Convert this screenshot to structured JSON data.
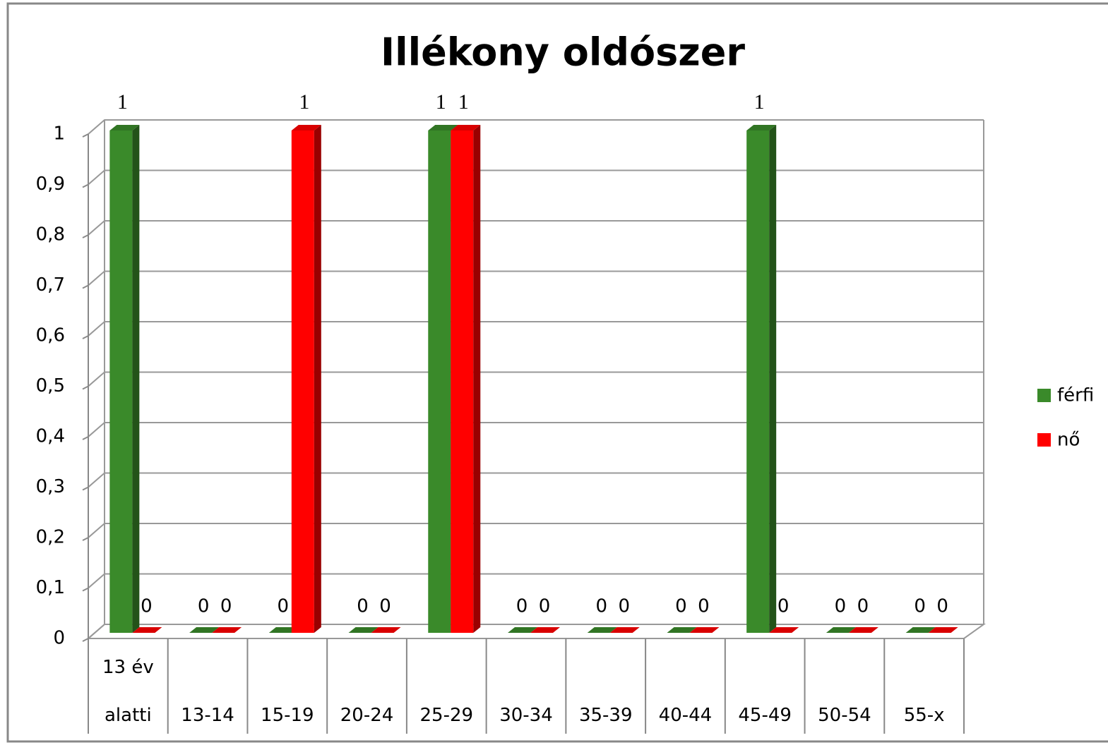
{
  "chart_data": {
    "type": "bar3d",
    "title": "Illékony oldószer",
    "categories": [
      "13 év alatti",
      "13-14",
      "15-19",
      "20-24",
      "25-29",
      "30-34",
      "35-39",
      "40-44",
      "45-49",
      "50-54",
      "55-x"
    ],
    "series": [
      {
        "name": "férfi",
        "color": "#3a8a2a",
        "values": [
          1,
          0,
          0,
          0,
          1,
          0,
          0,
          0,
          1,
          0,
          0
        ]
      },
      {
        "name": "nő",
        "color": "#ff0000",
        "values": [
          0,
          0,
          1,
          0,
          1,
          0,
          0,
          0,
          0,
          0,
          0
        ]
      }
    ],
    "ylim": [
      0,
      1
    ],
    "yticks": [
      0,
      {
        "value": 0.1,
        "label": "0,1"
      },
      {
        "value": 0.2,
        "label": "0,2"
      },
      {
        "value": 0.3,
        "label": "0,3"
      },
      {
        "value": 0.4,
        "label": "0,4"
      },
      {
        "value": 0.5,
        "label": "0,5"
      },
      {
        "value": 0.6,
        "label": "0,6"
      },
      {
        "value": 0.7,
        "label": "0,7"
      },
      {
        "value": 0.8,
        "label": "0,8"
      },
      {
        "value": 0.9,
        "label": "0,9"
      },
      1
    ],
    "grid": true,
    "legend": "right"
  }
}
